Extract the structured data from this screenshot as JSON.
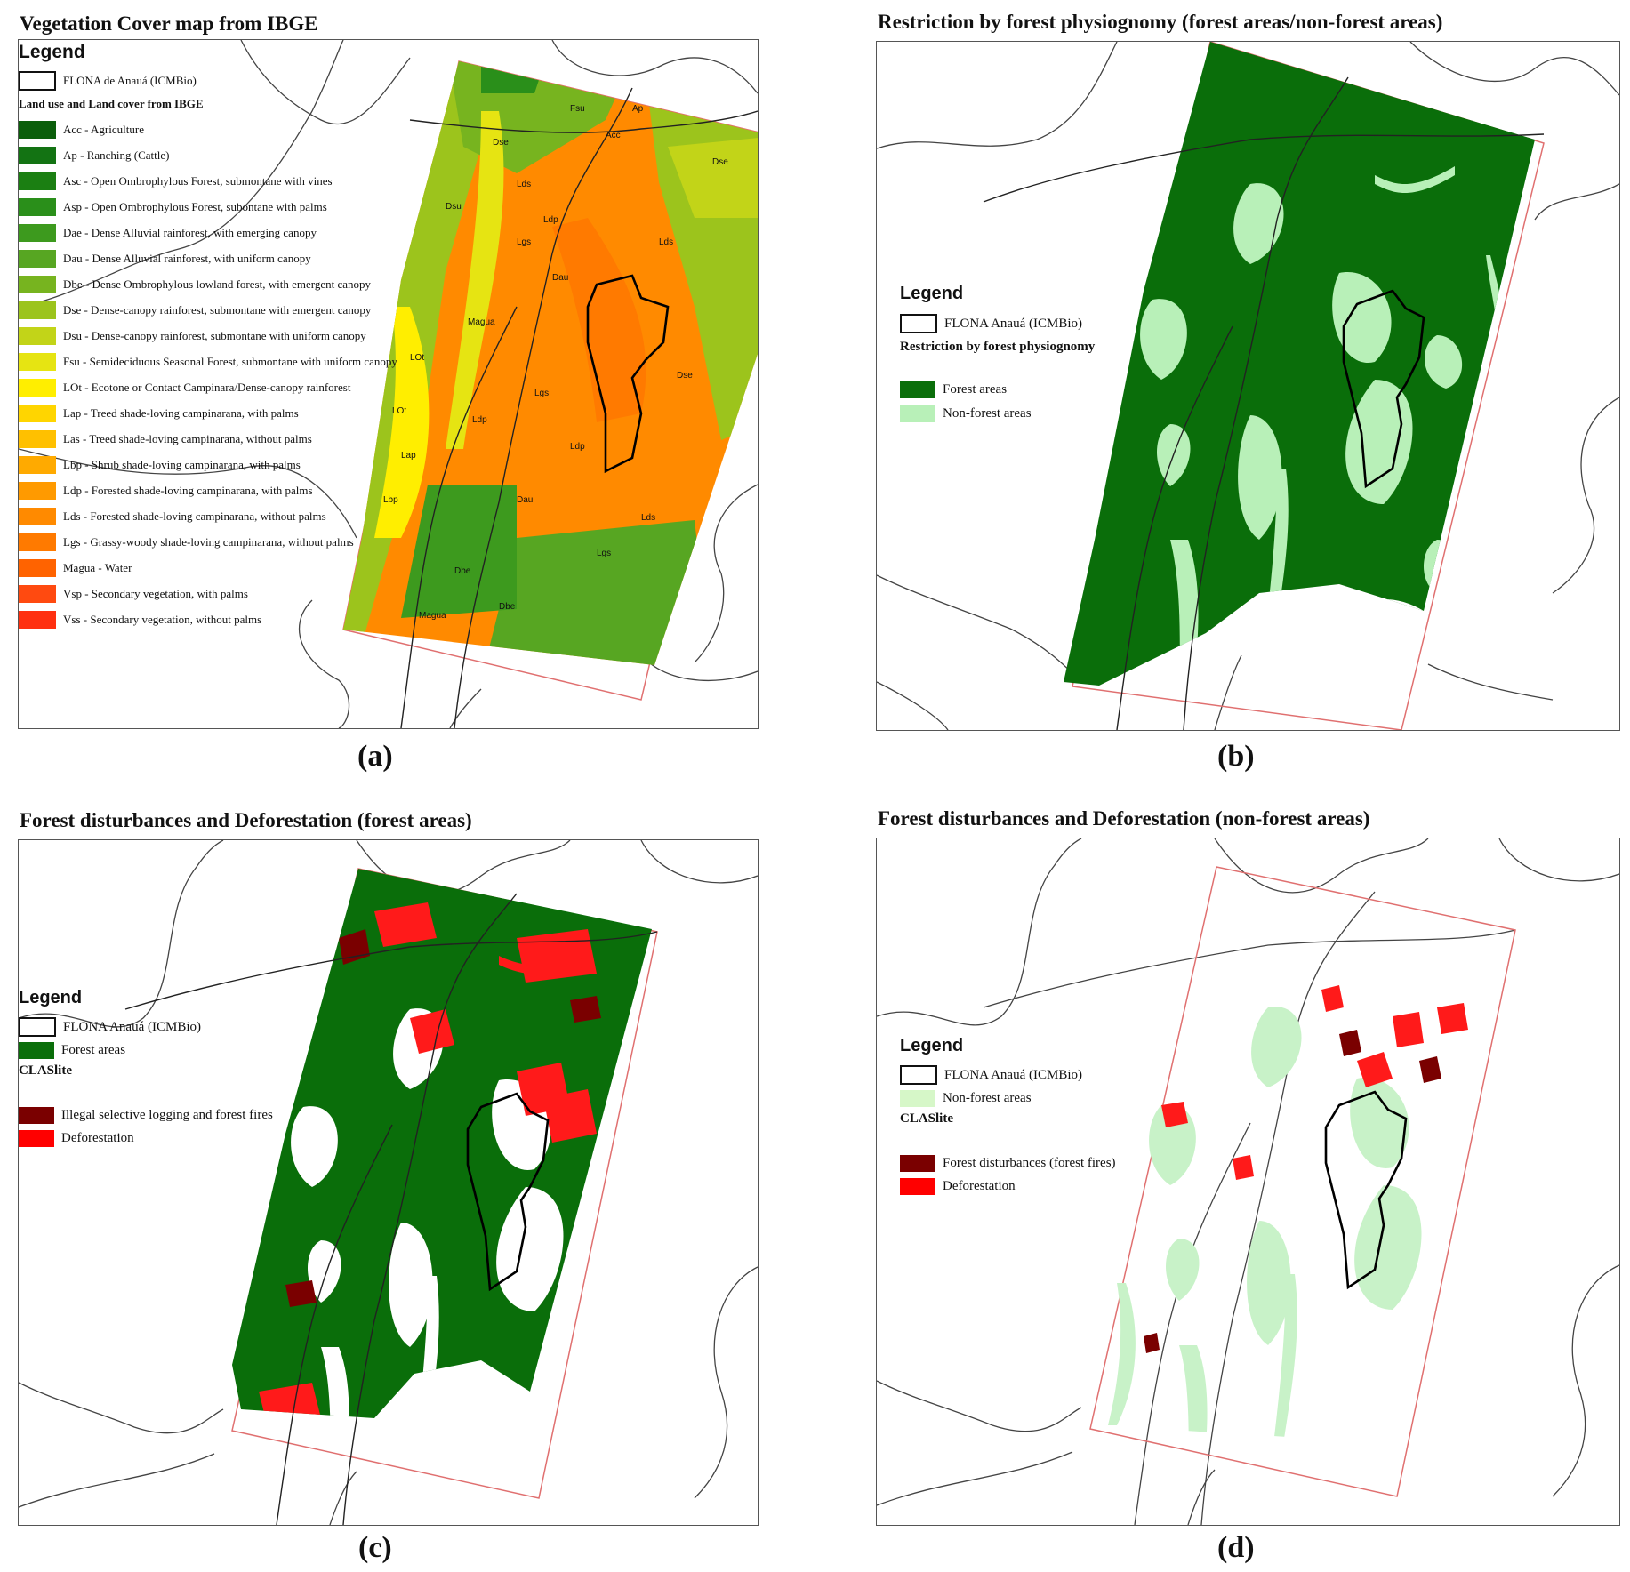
{
  "panels": {
    "a": {
      "title": "Vegetation Cover map from IBGE",
      "caption": "(a)",
      "legend": {
        "heading": "Legend",
        "boundary": "FLONA de Anauá (ICMBio)",
        "subheading": "Land use and Land cover from IBGE",
        "items": [
          {
            "label": "Acc - Agriculture",
            "color": "#0b5e0b"
          },
          {
            "label": "Ap - Ranching (Cattle)",
            "color": "#137313"
          },
          {
            "label": "Asc - Open Ombrophylous Forest, submontane with vines",
            "color": "#1b7f12"
          },
          {
            "label": "Asp - Open Ombrophylous Forest, subontane with palms",
            "color": "#2a8f1a"
          },
          {
            "label": "Dae - Dense Alluvial rainforest, with emerging canopy",
            "color": "#3d9a1e"
          },
          {
            "label": "Dau - Dense Alluvial rainforest, with uniform canopy",
            "color": "#57a622"
          },
          {
            "label": "Dbe - Dense Ombrophylous lowland forest, with emergent canopy",
            "color": "#77b41f"
          },
          {
            "label": "Dse - Dense-canopy rainforest, submontane with emergent canopy",
            "color": "#9cc41c"
          },
          {
            "label": "Dsu - Dense-canopy rainforest, submontane with uniform canopy",
            "color": "#c2d418"
          },
          {
            "label": "Fsu - Semideciduous Seasonal Forest, submontane with uniform canopy",
            "color": "#e6e412"
          },
          {
            "label": "LOt - Ecotone or Contact Campinara/Dense-canopy rainforest",
            "color": "#ffee00"
          },
          {
            "label": "Lap - Treed shade-loving campinarana, with palms",
            "color": "#ffd500"
          },
          {
            "label": "Las - Treed shade-loving campinarana, without palms",
            "color": "#ffc000"
          },
          {
            "label": "Lbp - Shrub shade-loving campinarana, with palms",
            "color": "#ffaa00"
          },
          {
            "label": "Ldp - Forested shade-loving campinarana, with palms",
            "color": "#ff9a00"
          },
          {
            "label": "Lds - Forested shade-loving campinarana, without palms",
            "color": "#ff8a00"
          },
          {
            "label": "Lgs - Grassy-woody shade-loving campinarana, without palms",
            "color": "#ff7a00"
          },
          {
            "label": "Magua - Water",
            "color": "#ff6300"
          },
          {
            "label": "Vsp - Secondary vegetation, with palms",
            "color": "#ff4a10"
          },
          {
            "label": "Vss - Secondary vegetation, without palms",
            "color": "#ff3010"
          }
        ]
      },
      "map_labels": [
        "Dse",
        "Lds",
        "Ldp",
        "Lgs",
        "Dau",
        "Dsu",
        "Magua",
        "LOt",
        "Dbe",
        "Lap",
        "Acc",
        "Ap",
        "Fsu",
        "Dse",
        "Lds",
        "Lgs",
        "Ldp",
        "Dau",
        "Magua",
        "Dbe",
        "LOt",
        "Lbp",
        "Dse",
        "Lgs",
        "Lds",
        "Ldp"
      ]
    },
    "b": {
      "title": "Restriction by forest physiognomy (forest areas/non-forest areas)",
      "caption": "(b)",
      "legend": {
        "heading": "Legend",
        "boundary": "FLONA Anauá (ICMBio)",
        "subheading": "Restriction by forest physiognomy",
        "items": [
          {
            "label": "Forest areas",
            "color": "#0a6e0a"
          },
          {
            "label": "Non-forest areas",
            "color": "#b8f0b8"
          }
        ]
      }
    },
    "c": {
      "title": "Forest disturbances and Deforestation (forest areas)",
      "caption": "(c)",
      "legend": {
        "heading": "Legend",
        "boundary": "FLONA Anauá (ICMBio)",
        "forest_label": "Forest areas",
        "forest_color": "#0a6e0a",
        "subheading": "CLASlite",
        "items": [
          {
            "label": "Illegal selective logging and forest fires",
            "color": "#7a0000"
          },
          {
            "label": "Deforestation",
            "color": "#ff0000"
          }
        ]
      }
    },
    "d": {
      "title": "Forest disturbances and Deforestation (non-forest areas)",
      "caption": "(d)",
      "legend": {
        "heading": "Legend",
        "boundary": "FLONA Anauá (ICMBio)",
        "nonforest_label": "Non-forest areas",
        "nonforest_color": "#d6f7c8",
        "subheading": "CLASlite",
        "items": [
          {
            "label": "Forest disturbances (forest fires)",
            "color": "#7a0000"
          },
          {
            "label": "Deforestation",
            "color": "#ff0000"
          }
        ]
      }
    }
  }
}
